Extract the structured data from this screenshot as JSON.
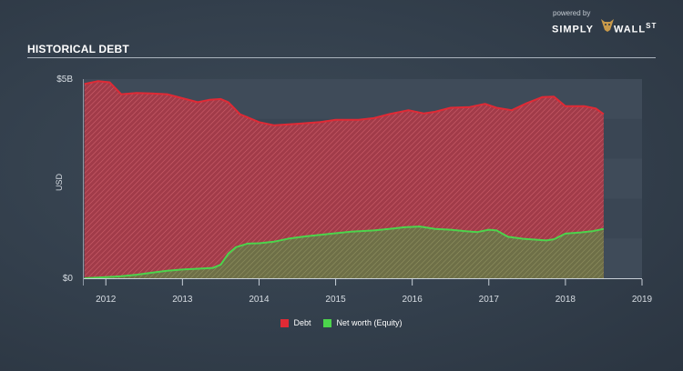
{
  "header": {
    "title": "HISTORICAL DEBT",
    "brand_powered": "powered by",
    "brand_name_a": "SIMPLY",
    "brand_name_b": "WALL",
    "brand_name_c": "ST"
  },
  "colors": {
    "debt": "#e02a35",
    "equity": "#4cd44c",
    "plot_bg": "#3a4654",
    "text": "#d7dde3"
  },
  "chart_data": {
    "type": "area",
    "title": "HISTORICAL DEBT",
    "xlabel": "",
    "ylabel": "USD",
    "ylim": [
      0,
      5
    ],
    "xlim": [
      2011.7,
      2019.0
    ],
    "y_ticks": [
      {
        "value": 0,
        "label": "$0"
      },
      {
        "value": 5,
        "label": "$5B"
      }
    ],
    "x_ticks": [
      {
        "value": 2012,
        "label": "2012"
      },
      {
        "value": 2013,
        "label": "2013"
      },
      {
        "value": 2014,
        "label": "2014"
      },
      {
        "value": 2015,
        "label": "2015"
      },
      {
        "value": 2016,
        "label": "2016"
      },
      {
        "value": 2017,
        "label": "2017"
      },
      {
        "value": 2018,
        "label": "2018"
      },
      {
        "value": 2019,
        "label": "2019"
      }
    ],
    "legend": "bottom-center",
    "series": [
      {
        "name": "Debt",
        "color": "#e02a35",
        "x": [
          2011.72,
          2011.9,
          2012.05,
          2012.2,
          2012.4,
          2012.6,
          2012.8,
          2013.0,
          2013.2,
          2013.35,
          2013.5,
          2013.6,
          2013.75,
          2014.0,
          2014.2,
          2014.5,
          2014.8,
          2015.0,
          2015.3,
          2015.5,
          2015.7,
          2015.95,
          2016.15,
          2016.3,
          2016.5,
          2016.75,
          2016.95,
          2017.1,
          2017.3,
          2017.5,
          2017.7,
          2017.85,
          2018.0,
          2018.25,
          2018.4,
          2018.5
        ],
        "values": [
          4.88,
          4.95,
          4.92,
          4.62,
          4.65,
          4.64,
          4.62,
          4.52,
          4.42,
          4.48,
          4.5,
          4.42,
          4.12,
          3.92,
          3.84,
          3.88,
          3.92,
          3.98,
          3.98,
          4.02,
          4.12,
          4.22,
          4.14,
          4.18,
          4.28,
          4.3,
          4.38,
          4.28,
          4.22,
          4.4,
          4.55,
          4.56,
          4.32,
          4.32,
          4.26,
          4.12
        ]
      },
      {
        "name": "Net worth (Equity)",
        "color": "#4cd44c",
        "x": [
          2011.72,
          2012.0,
          2012.2,
          2012.4,
          2012.6,
          2012.8,
          2013.0,
          2013.2,
          2013.4,
          2013.5,
          2013.6,
          2013.7,
          2013.85,
          2014.0,
          2014.2,
          2014.4,
          2014.6,
          2014.8,
          2015.0,
          2015.2,
          2015.5,
          2015.7,
          2015.9,
          2016.1,
          2016.3,
          2016.5,
          2016.7,
          2016.85,
          2017.0,
          2017.1,
          2017.25,
          2017.45,
          2017.6,
          2017.75,
          2017.85,
          2018.0,
          2018.2,
          2018.35,
          2018.5
        ],
        "values": [
          0.0,
          0.03,
          0.05,
          0.09,
          0.14,
          0.19,
          0.22,
          0.24,
          0.26,
          0.34,
          0.62,
          0.78,
          0.87,
          0.88,
          0.92,
          1.0,
          1.05,
          1.09,
          1.13,
          1.17,
          1.2,
          1.24,
          1.28,
          1.3,
          1.24,
          1.22,
          1.18,
          1.16,
          1.22,
          1.2,
          1.04,
          0.99,
          0.97,
          0.95,
          0.98,
          1.12,
          1.15,
          1.18,
          1.24
        ]
      }
    ]
  }
}
